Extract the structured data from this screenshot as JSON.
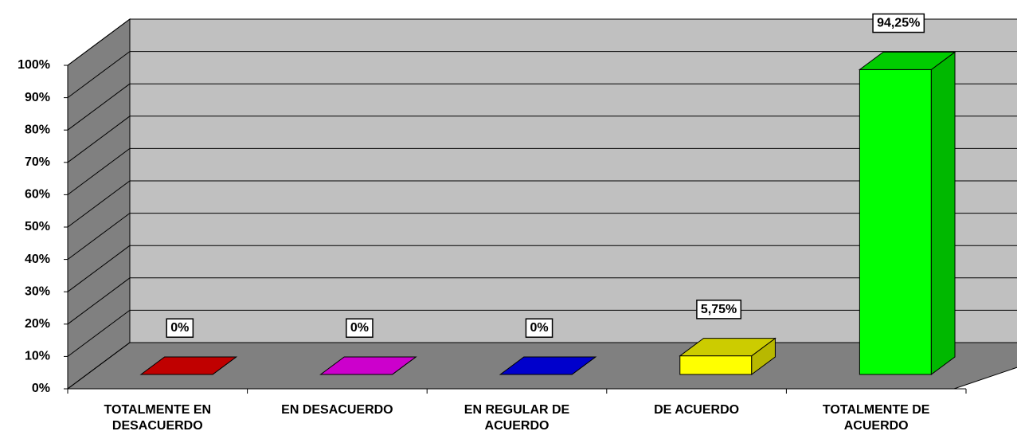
{
  "chart_data": {
    "type": "bar3d",
    "categories": [
      "TOTALMENTE EN DESACUERDO",
      "EN DESACUERDO",
      "EN REGULAR DE ACUERDO",
      "DE ACUERDO",
      "TOTALMENTE DE ACUERDO"
    ],
    "values": [
      0,
      0,
      0,
      5.75,
      94.25
    ],
    "value_labels": [
      "0%",
      "0%",
      "0%",
      "5,75%",
      "94,25%"
    ],
    "colors": [
      "#c00000",
      "#cc00cc",
      "#0000cc",
      "#ffff00",
      "#00ff00"
    ],
    "ylim": [
      0,
      100
    ],
    "yticks": [
      {
        "value": 0,
        "label": "0%"
      },
      {
        "value": 10,
        "label": "10%"
      },
      {
        "value": 20,
        "label": "20%"
      },
      {
        "value": 30,
        "label": "30%"
      },
      {
        "value": 40,
        "label": "40%"
      },
      {
        "value": 50,
        "label": "50%"
      },
      {
        "value": 60,
        "label": "60%"
      },
      {
        "value": 70,
        "label": "70%"
      },
      {
        "value": 80,
        "label": "80%"
      },
      {
        "value": 90,
        "label": "90%"
      },
      {
        "value": 100,
        "label": "100%"
      }
    ],
    "grid": true
  }
}
